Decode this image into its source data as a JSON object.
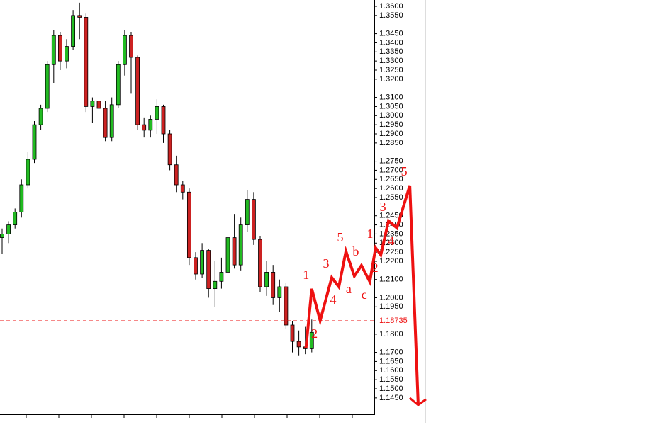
{
  "chart_data": {
    "type": "candlestick",
    "up_color": "#22bb22",
    "down_color": "#cc2222",
    "overlay_color": "#ee1111",
    "series": {
      "open": [
        1.233,
        1.235,
        1.24,
        1.247,
        1.262,
        1.276,
        1.295,
        1.304,
        1.328,
        1.344,
        1.33,
        1.338,
        1.355,
        1.354,
        1.305,
        1.308,
        1.304,
        1.288,
        1.306,
        1.328,
        1.344,
        1.332,
        1.295,
        1.292,
        1.298,
        1.305,
        1.29,
        1.273,
        1.262,
        1.258,
        1.222,
        1.213,
        1.226,
        1.205,
        1.209,
        1.214,
        1.233,
        1.218,
        1.24,
        1.254,
        1.232,
        1.206,
        1.214,
        1.2,
        1.206,
        1.185,
        1.176,
        1.173,
        1.172
      ],
      "high": [
        1.238,
        1.242,
        1.249,
        1.265,
        1.28,
        1.297,
        1.306,
        1.33,
        1.347,
        1.346,
        1.342,
        1.358,
        1.362,
        1.356,
        1.31,
        1.31,
        1.308,
        1.31,
        1.33,
        1.347,
        1.346,
        1.333,
        1.299,
        1.3,
        1.309,
        1.306,
        1.292,
        1.278,
        1.264,
        1.26,
        1.225,
        1.23,
        1.227,
        1.22,
        1.222,
        1.238,
        1.246,
        1.244,
        1.259,
        1.258,
        1.234,
        1.22,
        1.218,
        1.21,
        1.208,
        1.187,
        1.182,
        1.184,
        1.188
      ],
      "low": [
        1.224,
        1.23,
        1.238,
        1.244,
        1.26,
        1.274,
        1.292,
        1.302,
        1.318,
        1.325,
        1.326,
        1.336,
        1.342,
        1.302,
        1.296,
        1.292,
        1.286,
        1.286,
        1.304,
        1.322,
        1.312,
        1.292,
        1.288,
        1.288,
        1.29,
        1.285,
        1.27,
        1.258,
        1.254,
        1.218,
        1.21,
        1.211,
        1.2,
        1.195,
        1.205,
        1.212,
        1.216,
        1.215,
        1.236,
        1.229,
        1.203,
        1.201,
        1.196,
        1.192,
        1.183,
        1.17,
        1.168,
        1.169,
        1.17
      ],
      "close": [
        1.235,
        1.24,
        1.247,
        1.262,
        1.276,
        1.295,
        1.304,
        1.328,
        1.344,
        1.33,
        1.338,
        1.355,
        1.354,
        1.305,
        1.308,
        1.304,
        1.288,
        1.306,
        1.328,
        1.344,
        1.332,
        1.295,
        1.292,
        1.298,
        1.305,
        1.29,
        1.273,
        1.262,
        1.258,
        1.222,
        1.213,
        1.226,
        1.205,
        1.209,
        1.214,
        1.233,
        1.218,
        1.24,
        1.254,
        1.232,
        1.206,
        1.214,
        1.2,
        1.206,
        1.185,
        1.176,
        1.173,
        1.172,
        1.181
      ]
    },
    "ylim": [
      1.136,
      1.3635
    ],
    "yticks": [
      {
        "value": 1.36,
        "label": "1.3600"
      },
      {
        "value": 1.355,
        "label": "1.3550"
      },
      {
        "value": 1.345,
        "label": "1.3450"
      },
      {
        "value": 1.34,
        "label": "1.3400"
      },
      {
        "value": 1.335,
        "label": "1.3350"
      },
      {
        "value": 1.33,
        "label": "1.3300"
      },
      {
        "value": 1.325,
        "label": "1.3250"
      },
      {
        "value": 1.32,
        "label": "1.3200"
      },
      {
        "value": 1.31,
        "label": "1.3100"
      },
      {
        "value": 1.305,
        "label": "1.3050"
      },
      {
        "value": 1.3,
        "label": "1.3000"
      },
      {
        "value": 1.295,
        "label": "1.2950"
      },
      {
        "value": 1.29,
        "label": "1.2900"
      },
      {
        "value": 1.285,
        "label": "1.2850"
      },
      {
        "value": 1.275,
        "label": "1.2750"
      },
      {
        "value": 1.27,
        "label": "1.2700"
      },
      {
        "value": 1.265,
        "label": "1.2650"
      },
      {
        "value": 1.26,
        "label": "1.2600"
      },
      {
        "value": 1.255,
        "label": "1.2550"
      },
      {
        "value": 1.245,
        "label": "1.2450"
      },
      {
        "value": 1.24,
        "label": "1.2400"
      },
      {
        "value": 1.235,
        "label": "1.2350"
      },
      {
        "value": 1.23,
        "label": "1.2300"
      },
      {
        "value": 1.225,
        "label": "1.2250"
      },
      {
        "value": 1.22,
        "label": "1.2200"
      },
      {
        "value": 1.21,
        "label": "1.2100"
      },
      {
        "value": 1.2,
        "label": "1.2000"
      },
      {
        "value": 1.195,
        "label": "1.1950"
      },
      {
        "value": 1.18,
        "label": "1.1800"
      },
      {
        "value": 1.17,
        "label": "1.1700"
      },
      {
        "value": 1.165,
        "label": "1.1650"
      },
      {
        "value": 1.16,
        "label": "1.1600"
      },
      {
        "value": 1.155,
        "label": "1.1550"
      },
      {
        "value": 1.15,
        "label": "1.1500"
      },
      {
        "value": 1.145,
        "label": "1.1450"
      }
    ],
    "hline": 1.18735,
    "wave": {
      "x": [
        47.1,
        48.0,
        49.3,
        51.1,
        52.2,
        53.3,
        54.6,
        55.7,
        57.0,
        57.9,
        58.7,
        59.9,
        61.2,
        63.2,
        64.5
      ],
      "y": [
        1.1722,
        1.2049,
        1.1874,
        1.2111,
        1.206,
        1.2255,
        1.2119,
        1.2177,
        1.2088,
        1.2274,
        1.2235,
        1.2422,
        1.2383,
        1.2616,
        1.1411
      ],
      "labels": [
        null,
        "1",
        "2",
        "3",
        "4",
        "5",
        "a",
        "b",
        "c",
        "1",
        "2",
        "3",
        "4",
        "5",
        null
      ]
    }
  }
}
